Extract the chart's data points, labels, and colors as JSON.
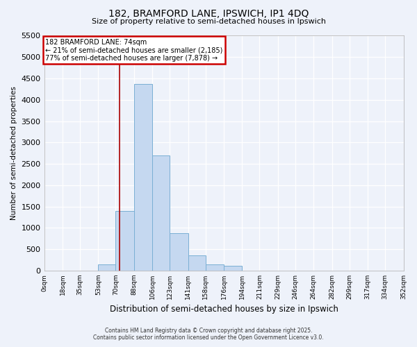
{
  "title": "182, BRAMFORD LANE, IPSWICH, IP1 4DQ",
  "subtitle": "Size of property relative to semi-detached houses in Ipswich",
  "xlabel": "Distribution of semi-detached houses by size in Ipswich",
  "ylabel": "Number of semi-detached properties",
  "footer1": "Contains HM Land Registry data © Crown copyright and database right 2025.",
  "footer2": "Contains public sector information licensed under the Open Government Licence v3.0.",
  "annotation_line1": "182 BRAMFORD LANE: 74sqm",
  "annotation_line2": "← 21% of semi-detached houses are smaller (2,185)",
  "annotation_line3": "77% of semi-detached houses are larger (7,878) →",
  "property_size": 74,
  "bin_edges": [
    0,
    18,
    35,
    53,
    70,
    88,
    106,
    123,
    141,
    158,
    176,
    194,
    211,
    229,
    246,
    264,
    282,
    299,
    317,
    334,
    352
  ],
  "bin_labels": [
    "0sqm",
    "18sqm",
    "35sqm",
    "53sqm",
    "70sqm",
    "88sqm",
    "106sqm",
    "123sqm",
    "141sqm",
    "158sqm",
    "176sqm",
    "194sqm",
    "211sqm",
    "229sqm",
    "246sqm",
    "264sqm",
    "282sqm",
    "299sqm",
    "317sqm",
    "334sqm",
    "352sqm"
  ],
  "counts": [
    0,
    0,
    0,
    150,
    1400,
    4370,
    2700,
    880,
    360,
    145,
    110,
    0,
    0,
    0,
    0,
    0,
    0,
    0,
    0,
    0
  ],
  "bar_color": "#c5d8f0",
  "bar_edge_color": "#7aafd4",
  "vline_color": "#aa0000",
  "annotation_box_color": "#cc0000",
  "background_color": "#eef2fa",
  "ylim": [
    0,
    5500
  ],
  "yticks": [
    0,
    500,
    1000,
    1500,
    2000,
    2500,
    3000,
    3500,
    4000,
    4500,
    5000,
    5500
  ]
}
